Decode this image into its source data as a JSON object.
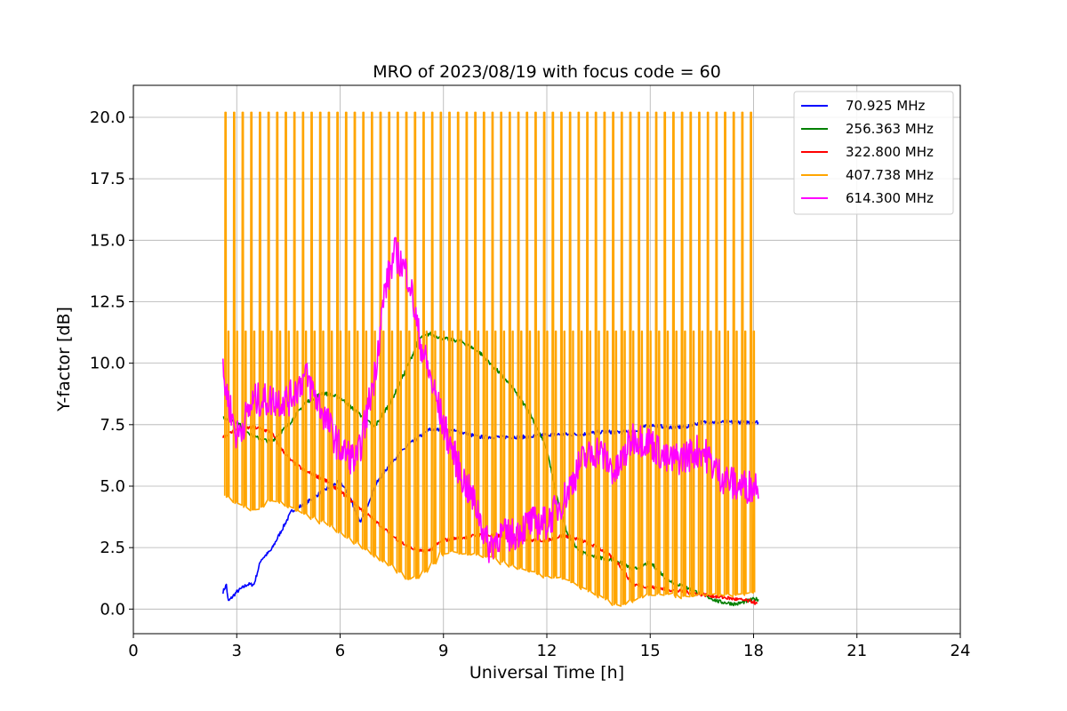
{
  "chart_data": {
    "type": "line",
    "title": "MRO of 2023/08/19 with focus code = 60",
    "xlabel": "Universal Time [h]",
    "ylabel": "Y-factor [dB]",
    "xlim": [
      0,
      24
    ],
    "ylim": [
      -1.0,
      21.3
    ],
    "x_ticks": [
      0,
      3,
      6,
      9,
      12,
      15,
      18,
      21,
      24
    ],
    "x_tick_labels": [
      "0",
      "3",
      "6",
      "9",
      "12",
      "15",
      "18",
      "21",
      "24"
    ],
    "y_ticks": [
      0.0,
      2.5,
      5.0,
      7.5,
      10.0,
      12.5,
      15.0,
      17.5,
      20.0
    ],
    "y_tick_labels": [
      "0.0",
      "2.5",
      "5.0",
      "7.5",
      "10.0",
      "12.5",
      "15.0",
      "17.5",
      "20.0"
    ],
    "grid": true,
    "legend_position": "top-right",
    "series": [
      {
        "name": "70.925 MHz",
        "color": "#0000ff",
        "x": [
          2.6,
          2.7,
          2.75,
          3.0,
          3.3,
          3.5,
          3.7,
          4.0,
          4.3,
          4.6,
          5.0,
          5.5,
          6.0,
          6.3,
          6.6,
          7.0,
          7.5,
          8.0,
          8.3,
          8.6,
          9.0,
          9.5,
          10.0,
          10.5,
          11.0,
          11.5,
          12.0,
          12.5,
          13.0,
          13.5,
          14.0,
          14.5,
          15.0,
          15.5,
          16.0,
          16.5,
          17.0,
          17.5,
          18.0,
          18.15
        ],
        "y": [
          0.7,
          1.0,
          0.3,
          0.7,
          1.0,
          1.0,
          2.0,
          2.4,
          3.2,
          4.0,
          4.3,
          4.8,
          5.2,
          4.5,
          3.5,
          5.0,
          6.0,
          6.7,
          7.0,
          7.3,
          7.3,
          7.2,
          7.0,
          7.0,
          7.0,
          7.0,
          7.1,
          7.1,
          7.1,
          7.2,
          7.2,
          7.2,
          7.5,
          7.4,
          7.4,
          7.6,
          7.6,
          7.6,
          7.6,
          7.6
        ]
      },
      {
        "name": "256.363 MHz",
        "color": "#008000",
        "x": [
          2.6,
          3.0,
          3.5,
          4.0,
          4.5,
          5.0,
          5.5,
          6.0,
          6.5,
          7.0,
          7.5,
          8.0,
          8.3,
          8.6,
          9.0,
          9.5,
          10.0,
          10.5,
          11.0,
          11.5,
          12.0,
          12.3,
          12.6,
          13.0,
          13.5,
          14.0,
          14.5,
          15.0,
          15.5,
          16.0,
          16.5,
          17.0,
          17.5,
          18.0,
          18.15
        ],
        "y": [
          7.8,
          7.6,
          7.0,
          6.8,
          7.5,
          8.4,
          8.8,
          8.6,
          8.0,
          7.4,
          8.5,
          10.0,
          11.0,
          11.2,
          11.0,
          10.9,
          10.5,
          9.8,
          9.0,
          8.0,
          6.5,
          4.5,
          3.0,
          2.3,
          2.1,
          2.0,
          1.6,
          1.9,
          1.2,
          0.9,
          0.6,
          0.3,
          0.2,
          0.4,
          0.4
        ]
      },
      {
        "name": "322.800 MHz",
        "color": "#ff0000",
        "x": [
          2.6,
          3.0,
          3.5,
          4.0,
          4.3,
          4.6,
          5.0,
          5.5,
          6.0,
          6.5,
          7.0,
          7.5,
          8.0,
          8.5,
          9.0,
          9.5,
          10.0,
          10.5,
          11.0,
          11.5,
          12.0,
          12.5,
          13.0,
          13.5,
          14.0,
          14.5,
          15.0,
          15.5,
          16.0,
          16.5,
          17.0,
          17.5,
          18.0,
          18.1
        ],
        "y": [
          7.0,
          7.3,
          7.4,
          7.2,
          6.5,
          6.0,
          5.6,
          5.3,
          4.8,
          4.2,
          3.6,
          3.0,
          2.5,
          2.3,
          2.8,
          2.9,
          3.0,
          3.0,
          2.9,
          2.8,
          2.8,
          3.0,
          2.8,
          2.5,
          2.0,
          1.0,
          0.9,
          0.8,
          0.7,
          0.6,
          0.5,
          0.4,
          0.3,
          0.2
        ]
      },
      {
        "name": "407.738 MHz",
        "color": "#ffa500",
        "x": [
          2.6,
          3.0,
          3.5,
          4.0,
          4.5,
          5.0,
          5.5,
          6.0,
          6.5,
          7.0,
          7.5,
          8.0,
          8.5,
          9.0,
          9.5,
          10.0,
          10.5,
          11.0,
          11.5,
          12.0,
          12.5,
          13.0,
          13.5,
          14.0,
          14.5,
          15.0,
          15.5,
          16.0,
          16.5,
          17.0,
          17.5,
          18.0,
          18.15
        ],
        "y": [
          4.6,
          4.2,
          4.0,
          4.5,
          4.1,
          3.8,
          3.5,
          3.0,
          2.6,
          2.1,
          1.7,
          1.1,
          1.6,
          2.4,
          2.2,
          2.2,
          2.0,
          1.7,
          1.5,
          1.3,
          1.2,
          0.8,
          0.5,
          0.1,
          0.4,
          0.6,
          0.6,
          0.5,
          0.6,
          0.6,
          0.6,
          0.7,
          1.2
        ],
        "spike_peak": 20.2,
        "spike_secondary_peak": 11.3,
        "spike_interval_h": 0.25
      },
      {
        "name": "614.300 MHz",
        "color": "#ff00ff",
        "x": [
          2.6,
          3.0,
          3.5,
          4.0,
          4.5,
          5.0,
          5.5,
          6.0,
          6.5,
          7.0,
          7.3,
          7.6,
          8.0,
          8.3,
          8.7,
          9.0,
          9.5,
          10.0,
          10.3,
          10.6,
          11.0,
          11.5,
          12.0,
          12.5,
          13.0,
          13.5,
          14.0,
          14.5,
          15.0,
          15.5,
          16.0,
          16.5,
          17.0,
          17.5,
          18.0,
          18.15
        ],
        "y": [
          9.5,
          7.0,
          8.5,
          8.5,
          8.5,
          9.5,
          8.0,
          6.5,
          6.0,
          9.5,
          13.0,
          14.5,
          13.5,
          11.0,
          9.0,
          7.5,
          5.5,
          4.0,
          2.5,
          3.0,
          3.0,
          3.5,
          3.5,
          4.5,
          6.0,
          6.5,
          5.5,
          7.0,
          6.8,
          6.0,
          6.2,
          6.5,
          5.5,
          5.0,
          5.0,
          5.2
        ]
      }
    ]
  }
}
